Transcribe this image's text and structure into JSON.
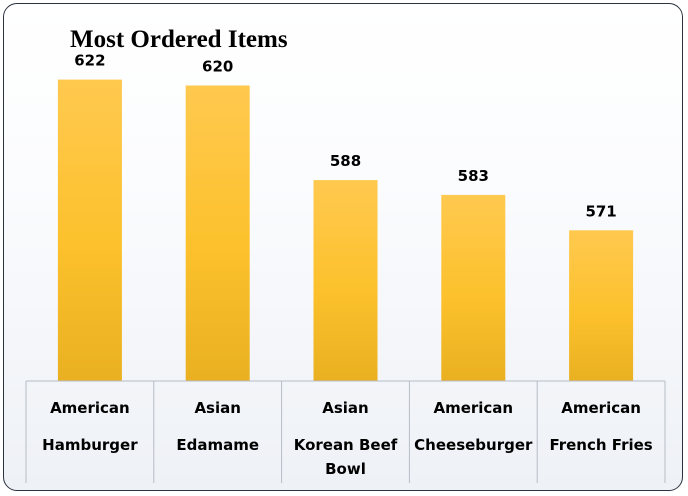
{
  "chart_data": {
    "type": "bar",
    "title": "Most Ordered Items",
    "categories": [
      [
        "American",
        "Hamburger"
      ],
      [
        "Asian",
        "Edamame"
      ],
      [
        "Asian",
        "Korean Beef",
        "Bowl"
      ],
      [
        "American",
        "Cheeseburger"
      ],
      [
        "American",
        "French Fries"
      ]
    ],
    "values": [
      622,
      620,
      588,
      583,
      571
    ],
    "value_labels": [
      "622",
      "620",
      "588",
      "583",
      "571"
    ],
    "xlabel": "",
    "ylabel": "",
    "ylim": [
      520,
      630
    ],
    "grid": false,
    "legend": "none",
    "colors": {
      "bar_top": "#ffc94f",
      "bar_mid": "#fcc12c",
      "bar_bottom": "#e9b021",
      "axis": "#b7bcc6"
    }
  }
}
